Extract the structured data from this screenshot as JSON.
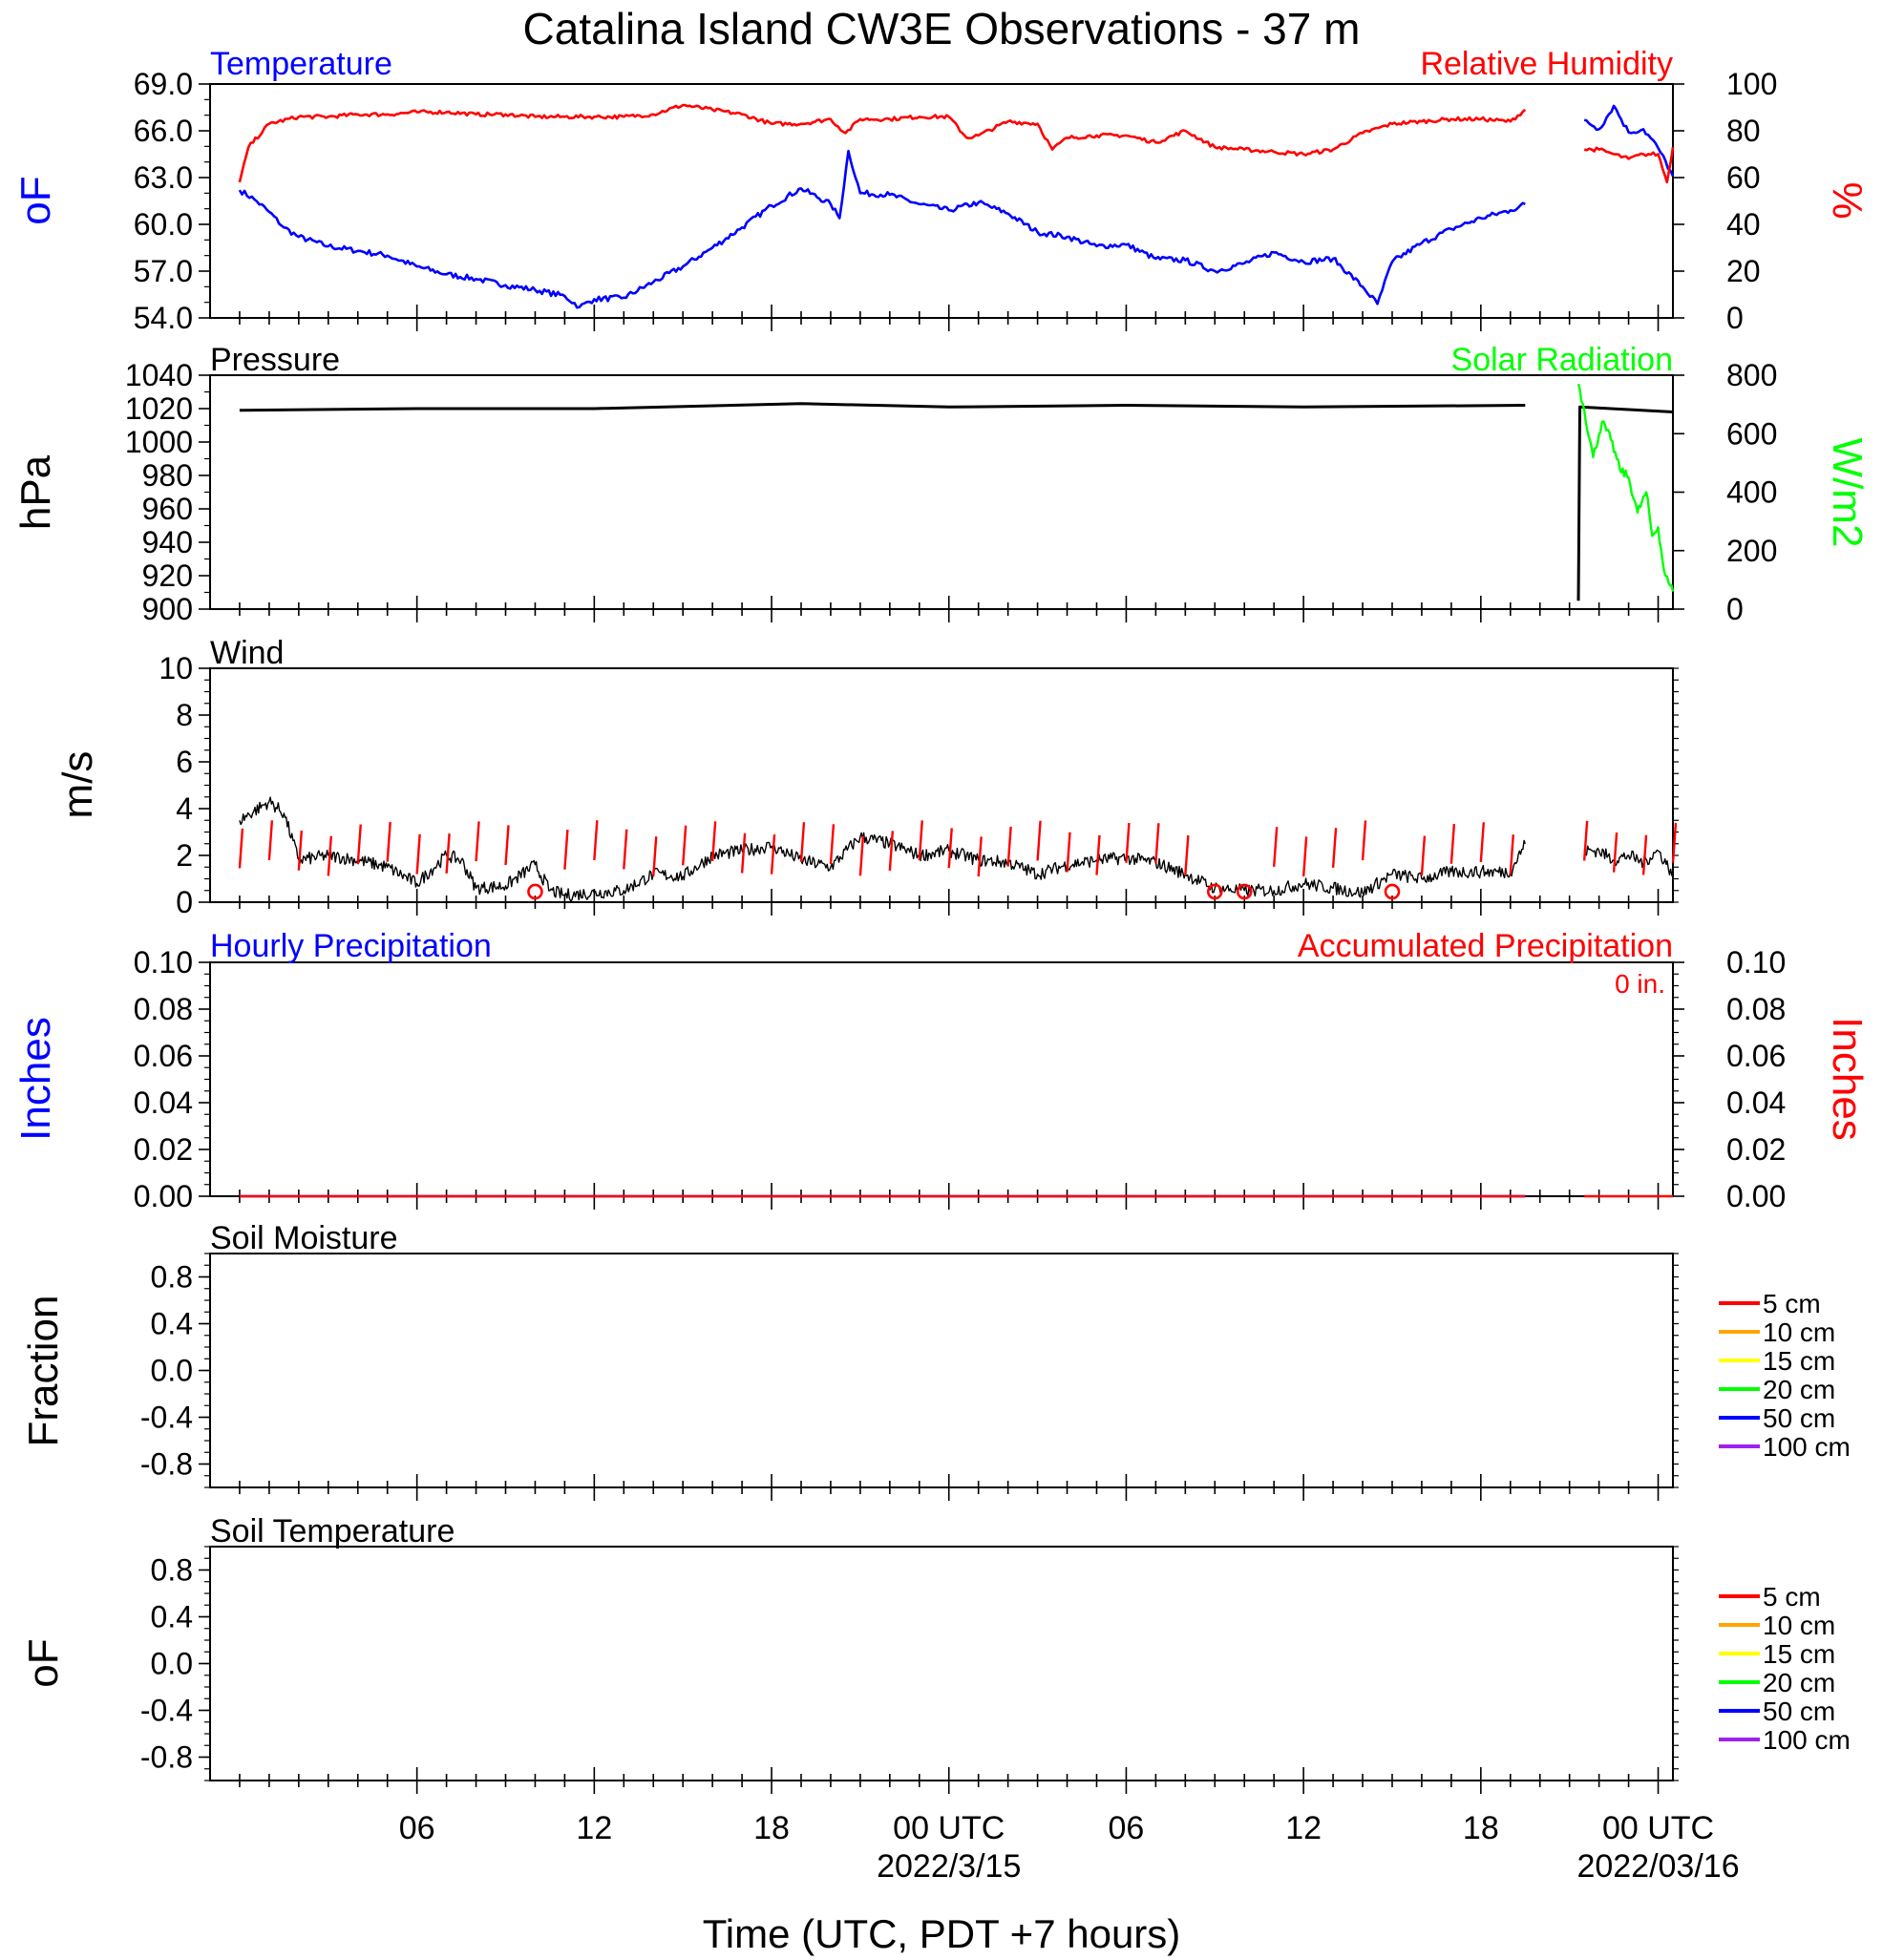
{
  "title": "Catalina Island CW3E Observations - 37 m",
  "x_axis": {
    "label": "Time (UTC, PDT +7 hours)",
    "ticks": [
      {
        "hour": 6,
        "label": "06"
      },
      {
        "hour": 12,
        "label": "12"
      },
      {
        "hour": 18,
        "label": "18"
      },
      {
        "hour": 24,
        "label": "00 UTC",
        "sublabel": "2022/3/15"
      },
      {
        "hour": 30,
        "label": "06"
      },
      {
        "hour": 36,
        "label": "12"
      },
      {
        "hour": 42,
        "label": "18"
      },
      {
        "hour": 48,
        "label": "00 UTC",
        "sublabel": "2022/03/16"
      }
    ]
  },
  "colors": {
    "temperature": "#0000ff",
    "humidity": "#ff0000",
    "pressure": "#000000",
    "solar": "#00ff00",
    "wind": "#000000",
    "wind_barb": "#ff0000",
    "hourly_precip": "#0000ff",
    "accum_precip": "#ff0000"
  },
  "panels": {
    "temp_rh": {
      "left_title": "Temperature",
      "right_title": "Relative Humidity",
      "left_unit": "oF",
      "right_unit": "%",
      "left_ticks": [
        "69.0",
        "66.0",
        "63.0",
        "60.0",
        "57.0",
        "54.0"
      ],
      "right_ticks": [
        "100",
        "80",
        "60",
        "40",
        "20",
        "0"
      ]
    },
    "pressure_solar": {
      "left_title": "Pressure",
      "right_title": "Solar Radiation",
      "left_unit": "hPa",
      "right_unit": "W/m2",
      "left_ticks": [
        "1040",
        "1020",
        "1000",
        "980",
        "960",
        "940",
        "920",
        "900"
      ],
      "right_ticks": [
        "800",
        "600",
        "400",
        "200",
        "0"
      ]
    },
    "wind": {
      "title": "Wind",
      "unit": "m/s",
      "ticks": [
        "10",
        "8",
        "6",
        "4",
        "2",
        "0"
      ]
    },
    "precip": {
      "left_title": "Hourly Precipitation",
      "right_title": "Accumulated Precipitation",
      "total_label": "0 in.",
      "left_unit": "Inches",
      "right_unit": "Inches",
      "ticks": [
        "0.10",
        "0.08",
        "0.06",
        "0.04",
        "0.02",
        "0.00"
      ]
    },
    "soil_moisture": {
      "title": "Soil Moisture",
      "unit": "Fraction",
      "ticks": [
        "0.8",
        "0.4",
        "0.0",
        "-0.4",
        "-0.8"
      ],
      "legend": [
        "5 cm",
        "10 cm",
        "15 cm",
        "20 cm",
        "50 cm",
        "100 cm"
      ]
    },
    "soil_temp": {
      "title": "Soil Temperature",
      "unit": "oF",
      "ticks": [
        "0.8",
        "0.4",
        "0.0",
        "-0.4",
        "-0.8"
      ],
      "legend": [
        "5 cm",
        "10 cm",
        "15 cm",
        "20 cm",
        "50 cm",
        "100 cm"
      ]
    }
  },
  "legend_colors": [
    "#ff0000",
    "#ffa500",
    "#ffff00",
    "#00ff00",
    "#0000ff",
    "#a020f0"
  ],
  "chart_data": [
    {
      "type": "line",
      "panel": "temp_rh",
      "x_unit": "hours since 2022-03-14 00 UTC",
      "ylim_left": [
        54,
        69
      ],
      "ylim_right": [
        0,
        100
      ],
      "series": [
        {
          "name": "Temperature",
          "axis": "left",
          "points": [
            [
              0,
              62.2
            ],
            [
              0.5,
              61.6
            ],
            [
              1,
              60.8
            ],
            [
              1.5,
              59.8
            ],
            [
              2,
              59.2
            ],
            [
              3,
              58.6
            ],
            [
              4,
              58.3
            ],
            [
              5,
              58.0
            ],
            [
              6,
              57.3
            ],
            [
              7,
              56.8
            ],
            [
              8,
              56.5
            ],
            [
              9,
              56.1
            ],
            [
              10,
              55.8
            ],
            [
              11,
              55.4
            ],
            [
              11.5,
              54.7
            ],
            [
              12,
              55.2
            ],
            [
              13,
              55.3
            ],
            [
              14,
              56.3
            ],
            [
              15,
              57.3
            ],
            [
              16,
              58.5
            ],
            [
              17,
              59.8
            ],
            [
              18,
              61.2
            ],
            [
              19,
              62.3
            ],
            [
              20,
              61.3
            ],
            [
              20.3,
              60.4
            ],
            [
              20.6,
              64.7
            ],
            [
              21,
              62.0
            ],
            [
              22,
              61.9
            ],
            [
              23,
              61.3
            ],
            [
              24,
              60.9
            ],
            [
              25,
              61.4
            ],
            [
              26,
              60.7
            ],
            [
              27,
              59.5
            ],
            [
              28,
              59.2
            ],
            [
              29,
              58.6
            ],
            [
              30,
              58.7
            ],
            [
              31,
              57.8
            ],
            [
              32,
              57.7
            ],
            [
              33,
              57.0
            ],
            [
              34,
              57.5
            ],
            [
              35,
              58.2
            ],
            [
              36,
              57.6
            ],
            [
              37,
              57.8
            ],
            [
              38,
              56.0
            ],
            [
              38.5,
              54.9
            ],
            [
              39,
              57.6
            ],
            [
              40,
              58.8
            ],
            [
              41,
              59.7
            ],
            [
              42,
              60.4
            ],
            [
              43,
              60.9
            ],
            [
              43.5,
              61.3
            ]
          ]
        },
        {
          "name": "Temperature",
          "axis": "left",
          "points": [
            [
              45.5,
              66.7
            ],
            [
              46,
              66.1
            ],
            [
              46.5,
              67.6
            ],
            [
              47,
              65.9
            ],
            [
              47.5,
              66.1
            ],
            [
              48,
              64.9
            ],
            [
              48.5,
              63.1
            ]
          ]
        },
        {
          "name": "Relative Humidity",
          "axis": "right",
          "points": [
            [
              0,
              58
            ],
            [
              0.3,
              73
            ],
            [
              1,
              83
            ],
            [
              2,
              86
            ],
            [
              3,
              86
            ],
            [
              4,
              87
            ],
            [
              5,
              87
            ],
            [
              6,
              88
            ],
            [
              7,
              88
            ],
            [
              8,
              87
            ],
            [
              9,
              87
            ],
            [
              10,
              86
            ],
            [
              11,
              86
            ],
            [
              12,
              86
            ],
            [
              13,
              86
            ],
            [
              14,
              87
            ],
            [
              15,
              91
            ],
            [
              16,
              89
            ],
            [
              17,
              87
            ],
            [
              18,
              83
            ],
            [
              19,
              83
            ],
            [
              20,
              85
            ],
            [
              20.5,
              79
            ],
            [
              21,
              85
            ],
            [
              22,
              85
            ],
            [
              23,
              86
            ],
            [
              24,
              86
            ],
            [
              24.6,
              77
            ],
            [
              25,
              78
            ],
            [
              26,
              84
            ],
            [
              27,
              83
            ],
            [
              27.5,
              72
            ],
            [
              28,
              77
            ],
            [
              29,
              78
            ],
            [
              30,
              78
            ],
            [
              31,
              75
            ],
            [
              32,
              80
            ],
            [
              33,
              73
            ],
            [
              34,
              72
            ],
            [
              35,
              71
            ],
            [
              36,
              70
            ],
            [
              37,
              72
            ],
            [
              38,
              79
            ],
            [
              39,
              83
            ],
            [
              40,
              84
            ],
            [
              41,
              85
            ],
            [
              42,
              85
            ],
            [
              43,
              84
            ],
            [
              43.5,
              89
            ]
          ]
        },
        {
          "name": "Relative Humidity",
          "axis": "right",
          "points": [
            [
              45.5,
              72
            ],
            [
              46,
              72
            ],
            [
              46.5,
              70
            ],
            [
              47,
              68
            ],
            [
              47.5,
              70
            ],
            [
              48,
              70
            ],
            [
              48.3,
              58
            ],
            [
              48.5,
              73
            ]
          ]
        }
      ]
    },
    {
      "type": "line",
      "panel": "pressure_solar",
      "x_unit": "hours since 2022-03-14 00 UTC",
      "ylim_left": [
        900,
        1040
      ],
      "ylim_right": [
        0,
        800
      ],
      "series": [
        {
          "name": "Pressure",
          "axis": "left",
          "points": [
            [
              0,
              1019
            ],
            [
              6,
              1020
            ],
            [
              12,
              1020
            ],
            [
              19,
              1023
            ],
            [
              24,
              1021
            ],
            [
              30,
              1022
            ],
            [
              36,
              1021
            ],
            [
              43.5,
              1022
            ]
          ]
        },
        {
          "name": "Pressure",
          "axis": "left",
          "points": [
            [
              45.3,
              905
            ],
            [
              45.35,
              1021
            ],
            [
              48.5,
              1018
            ]
          ]
        },
        {
          "name": "Solar Radiation",
          "axis": "right",
          "points": [
            [
              45.3,
              770
            ],
            [
              45.5,
              680
            ],
            [
              45.8,
              520
            ],
            [
              46.1,
              640
            ],
            [
              46.4,
              580
            ],
            [
              46.7,
              480
            ],
            [
              47.0,
              450
            ],
            [
              47.3,
              330
            ],
            [
              47.6,
              400
            ],
            [
              47.8,
              250
            ],
            [
              48.0,
              280
            ],
            [
              48.2,
              130
            ],
            [
              48.35,
              90
            ],
            [
              48.5,
              60
            ]
          ]
        }
      ]
    },
    {
      "type": "line",
      "panel": "wind",
      "x_unit": "hours since 2022-03-14 00 UTC",
      "ylim": [
        0,
        10
      ],
      "series": [
        {
          "name": "Wind",
          "points": [
            [
              0,
              3.5
            ],
            [
              1,
              4.3
            ],
            [
              1.5,
              3.8
            ],
            [
              2,
              1.8
            ],
            [
              3,
              2.0
            ],
            [
              4,
              1.8
            ],
            [
              5,
              1.5
            ],
            [
              6,
              0.8
            ],
            [
              7,
              2.0
            ],
            [
              7.5,
              1.8
            ],
            [
              8,
              0.6
            ],
            [
              9,
              0.7
            ],
            [
              10,
              1.6
            ],
            [
              10.5,
              0.5
            ],
            [
              11,
              0.3
            ],
            [
              12,
              0.4
            ],
            [
              13,
              0.5
            ],
            [
              14,
              1.2
            ],
            [
              15,
              1.1
            ],
            [
              16,
              2.0
            ],
            [
              17,
              2.2
            ],
            [
              18,
              2.4
            ],
            [
              19,
              1.8
            ],
            [
              20,
              1.5
            ],
            [
              21,
              2.8
            ],
            [
              22,
              2.5
            ],
            [
              23,
              2.0
            ],
            [
              24,
              2.2
            ],
            [
              25,
              1.8
            ],
            [
              26,
              1.7
            ],
            [
              27,
              1.2
            ],
            [
              28,
              1.6
            ],
            [
              29,
              1.8
            ],
            [
              30,
              1.9
            ],
            [
              31,
              1.7
            ],
            [
              32,
              1.2
            ],
            [
              33,
              0.6
            ],
            [
              34,
              0.5
            ],
            [
              35,
              0.5
            ],
            [
              36,
              0.8
            ],
            [
              37,
              0.6
            ],
            [
              38,
              0.4
            ],
            [
              39,
              1.2
            ],
            [
              40,
              1.0
            ],
            [
              41,
              1.3
            ],
            [
              42,
              1.3
            ],
            [
              43,
              1.3
            ],
            [
              43.5,
              2.5
            ]
          ]
        },
        {
          "name": "Wind",
          "points": [
            [
              45.5,
              2.2
            ],
            [
              46,
              2.2
            ],
            [
              46.5,
              1.8
            ],
            [
              47,
              2.0
            ],
            [
              47.5,
              1.7
            ],
            [
              48,
              2.2
            ],
            [
              48.5,
              1.2
            ]
          ]
        }
      ],
      "calm_markers": [
        10,
        33,
        34,
        39
      ],
      "barbs": {
        "start": 0,
        "step": 1,
        "end_a": 43.5,
        "start_b": 45.5,
        "end_b": 48.5
      }
    },
    {
      "type": "line",
      "panel": "precip",
      "x_unit": "hours since 2022-03-14 00 UTC",
      "ylim": [
        0,
        0.1
      ],
      "series": [
        {
          "name": "Hourly Precipitation",
          "points": [
            [
              0,
              0
            ],
            [
              43.5,
              0
            ]
          ]
        },
        {
          "name": "Accumulated Precipitation",
          "points": [
            [
              0,
              0
            ],
            [
              43.5,
              0
            ]
          ]
        },
        {
          "name": "Accumulated Precipitation",
          "points": [
            [
              45.5,
              0
            ],
            [
              48.5,
              0
            ]
          ]
        }
      ]
    }
  ]
}
